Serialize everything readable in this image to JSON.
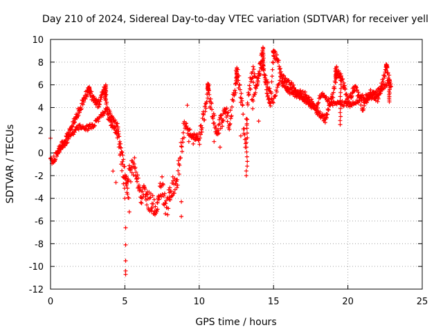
{
  "chart_data": {
    "type": "scatter",
    "title": "Day 210 of 2024, Sidereal Day-to-day VTEC variation (SDTVAR) for receiver yell",
    "xlabel": "GPS time / hours",
    "ylabel": "SDTVAR / TECUs",
    "xlim": [
      0,
      25
    ],
    "ylim": [
      -12,
      10
    ],
    "xticks": [
      0,
      5,
      10,
      15,
      20,
      25
    ],
    "yticks": [
      -12,
      -10,
      -8,
      -6,
      -4,
      -2,
      0,
      2,
      4,
      6,
      8,
      10
    ],
    "grid": true,
    "marker": "plus",
    "color": "#ff0000",
    "series": [
      {
        "name": "SDTVAR",
        "trace": [
          [
            0.0,
            -0.8
          ],
          [
            0.3,
            -0.4
          ],
          [
            0.6,
            0.3
          ],
          [
            1.0,
            1.2
          ],
          [
            1.5,
            2.5
          ],
          [
            2.0,
            4.0
          ],
          [
            2.5,
            5.5
          ],
          [
            2.8,
            5.0
          ],
          [
            3.2,
            4.2
          ],
          [
            3.6,
            5.8
          ],
          [
            3.9,
            3.0
          ],
          [
            4.2,
            2.4
          ],
          [
            4.5,
            1.6
          ],
          [
            4.8,
            -1.0
          ],
          [
            5.0,
            -3.0
          ],
          [
            5.3,
            -2.0
          ],
          [
            5.6,
            -1.0
          ],
          [
            6.0,
            -3.5
          ],
          [
            6.5,
            -4.0
          ],
          [
            7.0,
            -4.8
          ],
          [
            7.5,
            -3.0
          ],
          [
            7.8,
            -5.2
          ],
          [
            8.1,
            -3.0
          ],
          [
            8.5,
            -2.5
          ],
          [
            9.0,
            2.5
          ],
          [
            9.5,
            1.5
          ],
          [
            10.0,
            1.2
          ],
          [
            10.3,
            3.2
          ],
          [
            10.6,
            5.5
          ],
          [
            10.9,
            3.5
          ],
          [
            11.2,
            2.0
          ],
          [
            11.5,
            2.8
          ],
          [
            11.8,
            4.0
          ],
          [
            12.0,
            2.5
          ],
          [
            12.3,
            4.8
          ],
          [
            12.6,
            6.8
          ],
          [
            12.9,
            4.0
          ],
          [
            13.1,
            0.5
          ],
          [
            13.3,
            5.5
          ],
          [
            13.6,
            7.0
          ],
          [
            13.9,
            6.0
          ],
          [
            14.2,
            8.6
          ],
          [
            14.5,
            5.8
          ],
          [
            14.8,
            4.2
          ],
          [
            15.0,
            8.8
          ],
          [
            15.3,
            8.2
          ],
          [
            15.6,
            6.2
          ],
          [
            16.0,
            5.6
          ],
          [
            16.5,
            5.1
          ],
          [
            17.0,
            5.2
          ],
          [
            17.5,
            4.5
          ],
          [
            18.0,
            3.6
          ],
          [
            18.5,
            3.0
          ],
          [
            19.0,
            5.2
          ],
          [
            19.3,
            7.2
          ],
          [
            19.6,
            6.5
          ],
          [
            20.0,
            4.6
          ],
          [
            20.5,
            5.8
          ],
          [
            21.0,
            4.0
          ],
          [
            21.5,
            5.3
          ],
          [
            22.0,
            4.8
          ],
          [
            22.3,
            6.0
          ],
          [
            22.6,
            7.5
          ],
          [
            22.9,
            5.8
          ]
        ],
        "secondary_trace": [
          [
            0.5,
            0.1
          ],
          [
            1.0,
            0.9
          ],
          [
            1.5,
            1.8
          ],
          [
            2.0,
            2.4
          ],
          [
            2.5,
            2.2
          ],
          [
            3.0,
            2.6
          ],
          [
            3.4,
            3.2
          ],
          [
            3.8,
            3.8
          ],
          [
            4.1,
            3.4
          ],
          [
            4.5,
            2.4
          ],
          [
            5.0,
            -1.5
          ],
          [
            5.2,
            -4.0
          ],
          [
            13.6,
            4.5
          ],
          [
            14.2,
            7.6
          ],
          [
            15.0,
            4.5
          ],
          [
            15.5,
            6.8
          ],
          [
            16.2,
            6.0
          ],
          [
            17.0,
            4.6
          ],
          [
            17.8,
            4.0
          ],
          [
            18.2,
            5.2
          ],
          [
            18.8,
            4.4
          ],
          [
            19.5,
            4.4
          ],
          [
            20.2,
            4.2
          ],
          [
            21.0,
            4.9
          ],
          [
            21.6,
            5.0
          ],
          [
            22.2,
            5.7
          ],
          [
            22.8,
            6.3
          ]
        ],
        "outliers": [
          [
            0.0,
            1.3
          ],
          [
            4.2,
            -1.6
          ],
          [
            4.4,
            -2.6
          ],
          [
            5.0,
            -4.0
          ],
          [
            5.05,
            -6.6
          ],
          [
            5.05,
            -8.1
          ],
          [
            5.05,
            -9.5
          ],
          [
            5.05,
            -10.4
          ],
          [
            5.05,
            -10.7
          ],
          [
            5.3,
            -5.2
          ],
          [
            6.1,
            -3.9
          ],
          [
            6.8,
            -5.1
          ],
          [
            7.2,
            -4.4
          ],
          [
            8.0,
            -3.5
          ],
          [
            8.8,
            -4.3
          ],
          [
            8.8,
            -5.6
          ],
          [
            9.2,
            4.2
          ],
          [
            9.3,
            1.0
          ],
          [
            9.6,
            0.8
          ],
          [
            11.0,
            1.0
          ],
          [
            11.4,
            0.5
          ],
          [
            12.8,
            1.5
          ],
          [
            13.6,
            3.9
          ],
          [
            14.0,
            2.8
          ],
          [
            14.3,
            9.2
          ],
          [
            14.6,
            5.8
          ],
          [
            15.8,
            6.6
          ],
          [
            16.8,
            4.9
          ]
        ],
        "spikes": [
          [
            2.6,
            5.8
          ],
          [
            3.7,
            6.0
          ],
          [
            10.6,
            6.1
          ],
          [
            12.5,
            7.5
          ],
          [
            13.2,
            -2.0
          ],
          [
            14.3,
            9.3
          ],
          [
            15.0,
            9.0
          ],
          [
            19.2,
            7.6
          ],
          [
            22.6,
            7.8
          ],
          [
            19.5,
            2.5
          ],
          [
            22.8,
            4.5
          ]
        ]
      }
    ]
  }
}
